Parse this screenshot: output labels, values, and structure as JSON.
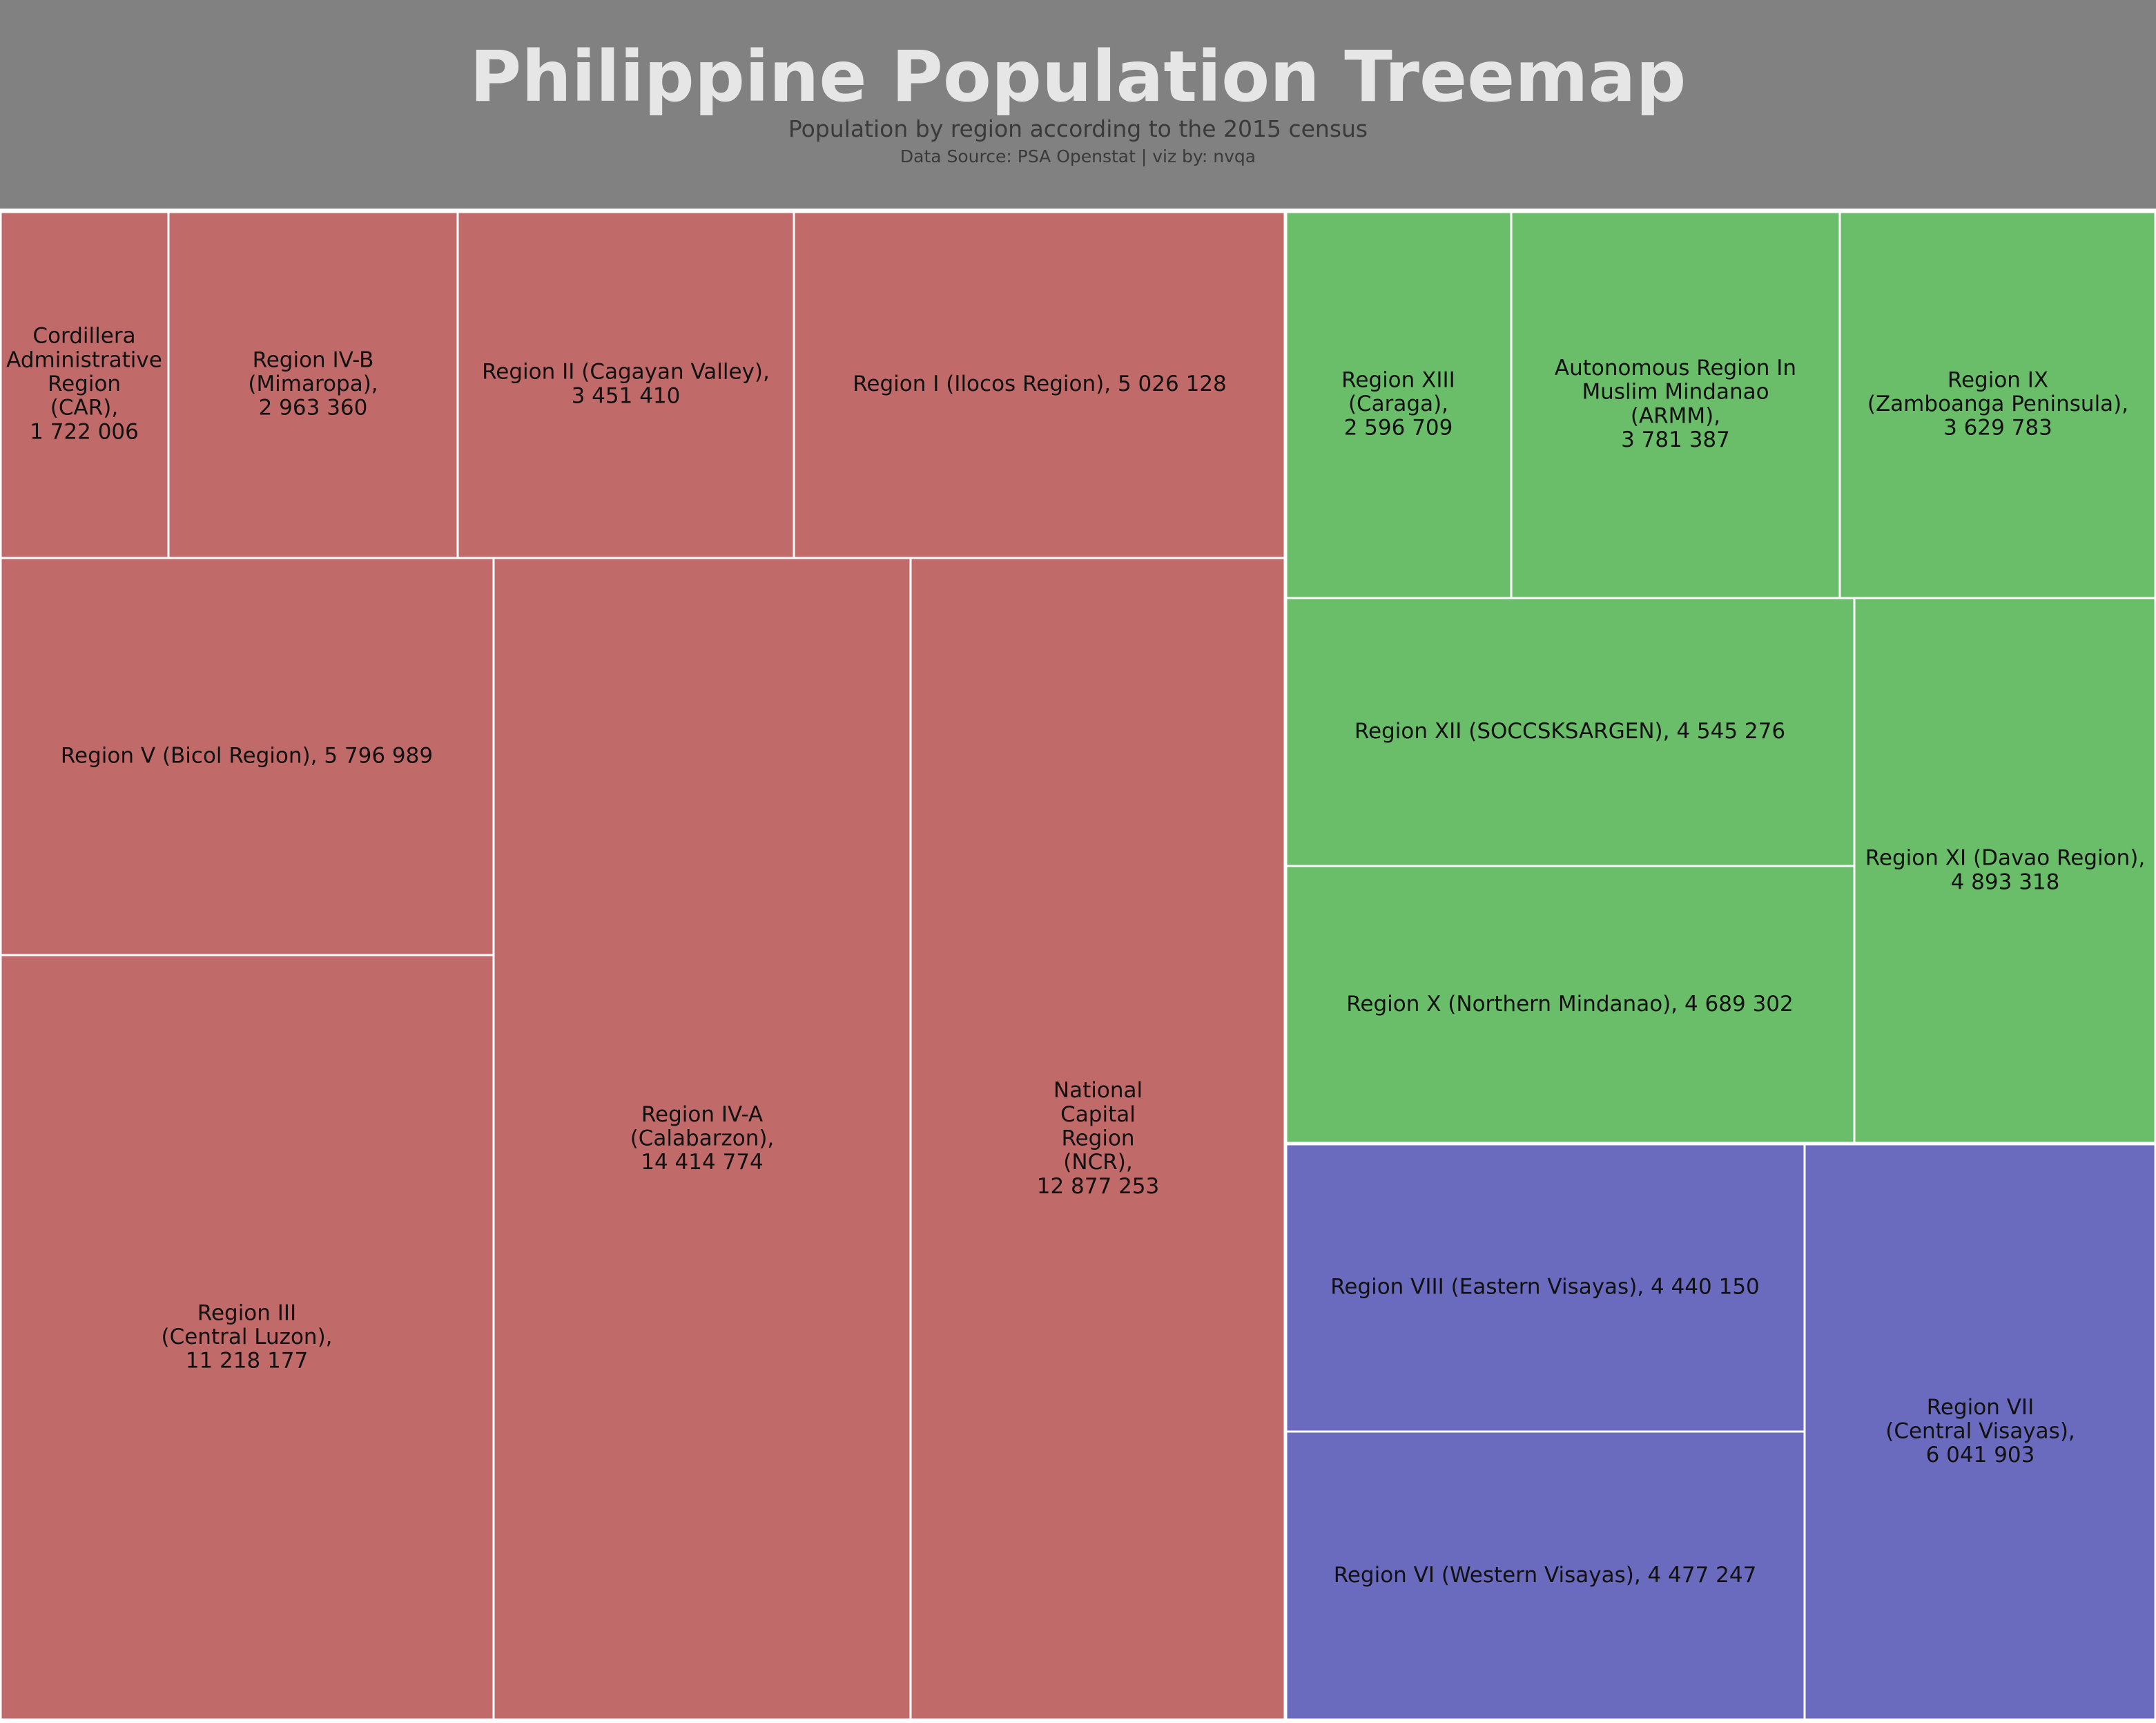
{
  "header": {
    "title": "Philippine Population Treemap",
    "subtitle": "Population by region according to the 2015 census",
    "source": "Data Source: PSA Openstat | viz by: nvqa"
  },
  "colors": {
    "header_bg": "#818181",
    "Luzon": "#c06a69",
    "Mindanao": "#6abe6a",
    "Visayas": "#6a6abe",
    "border": "#ffffff",
    "label": "#111111"
  },
  "chart_data": {
    "type": "treemap",
    "title": "Philippine Population Treemap",
    "subtitle": "Population by region according to the 2015 census",
    "groups": [
      {
        "key": "Luzon",
        "items": [
          {
            "name": "Cordillera Administrative Region (CAR)",
            "value": 1722006,
            "label_lines": [
              "Cordillera",
              "Administrative",
              "Region",
              "(CAR),",
              "1 722 006"
            ]
          },
          {
            "name": "Region IV-B (Mimaropa)",
            "value": 2963360,
            "label_lines": [
              "Region IV-B",
              "(Mimaropa),",
              "2 963 360"
            ]
          },
          {
            "name": "Region II (Cagayan Valley)",
            "value": 3451410,
            "label_lines": [
              "Region II (Cagayan Valley),",
              "3 451 410"
            ]
          },
          {
            "name": "Region I (Ilocos Region)",
            "value": 5026128,
            "label_lines": [
              "Region I (Ilocos Region), 5 026 128"
            ]
          },
          {
            "name": "Region V (Bicol Region)",
            "value": 5796989,
            "label_lines": [
              "Region V (Bicol Region), 5 796 989"
            ]
          },
          {
            "name": "Region III (Central Luzon)",
            "value": 11218177,
            "label_lines": [
              "Region III",
              "(Central Luzon),",
              "11 218 177"
            ]
          },
          {
            "name": "Region IV-A (Calabarzon)",
            "value": 14414774,
            "label_lines": [
              "Region IV-A",
              "(Calabarzon),",
              "14 414 774"
            ]
          },
          {
            "name": "National Capital Region (NCR)",
            "value": 12877253,
            "label_lines": [
              "National",
              "Capital",
              "Region",
              "(NCR),",
              "12 877 253"
            ]
          }
        ]
      },
      {
        "key": "Mindanao",
        "items": [
          {
            "name": "Region XIII (Caraga)",
            "value": 2596709,
            "label_lines": [
              "Region XIII",
              "(Caraga),",
              "2 596 709"
            ]
          },
          {
            "name": "Autonomous Region In Muslim Mindanao (ARMM)",
            "value": 3781387,
            "label_lines": [
              "Autonomous Region In",
              "Muslim Mindanao",
              "(ARMM),",
              "3 781 387"
            ]
          },
          {
            "name": "Region IX (Zamboanga Peninsula)",
            "value": 3629783,
            "label_lines": [
              "Region IX",
              "(Zamboanga Peninsula),",
              "3 629 783"
            ]
          },
          {
            "name": "Region XII (SOCCSKSARGEN)",
            "value": 4545276,
            "label_lines": [
              "Region XII (SOCCSKSARGEN), 4 545 276"
            ]
          },
          {
            "name": "Region X (Northern Mindanao)",
            "value": 4689302,
            "label_lines": [
              "Region X (Northern Mindanao), 4 689 302"
            ]
          },
          {
            "name": "Region XI (Davao Region)",
            "value": 4893318,
            "label_lines": [
              "Region XI (Davao Region),",
              "4 893 318"
            ]
          }
        ]
      },
      {
        "key": "Visayas",
        "items": [
          {
            "name": "Region VIII (Eastern Visayas)",
            "value": 4440150,
            "label_lines": [
              "Region VIII (Eastern Visayas), 4 440 150"
            ]
          },
          {
            "name": "Region VI (Western Visayas)",
            "value": 4477247,
            "label_lines": [
              "Region VI (Western Visayas), 4 477 247"
            ]
          },
          {
            "name": "Region VII (Central Visayas)",
            "value": 6041903,
            "label_lines": [
              "Region VII",
              "(Central Visayas),",
              "6 041 903"
            ]
          }
        ]
      }
    ]
  }
}
